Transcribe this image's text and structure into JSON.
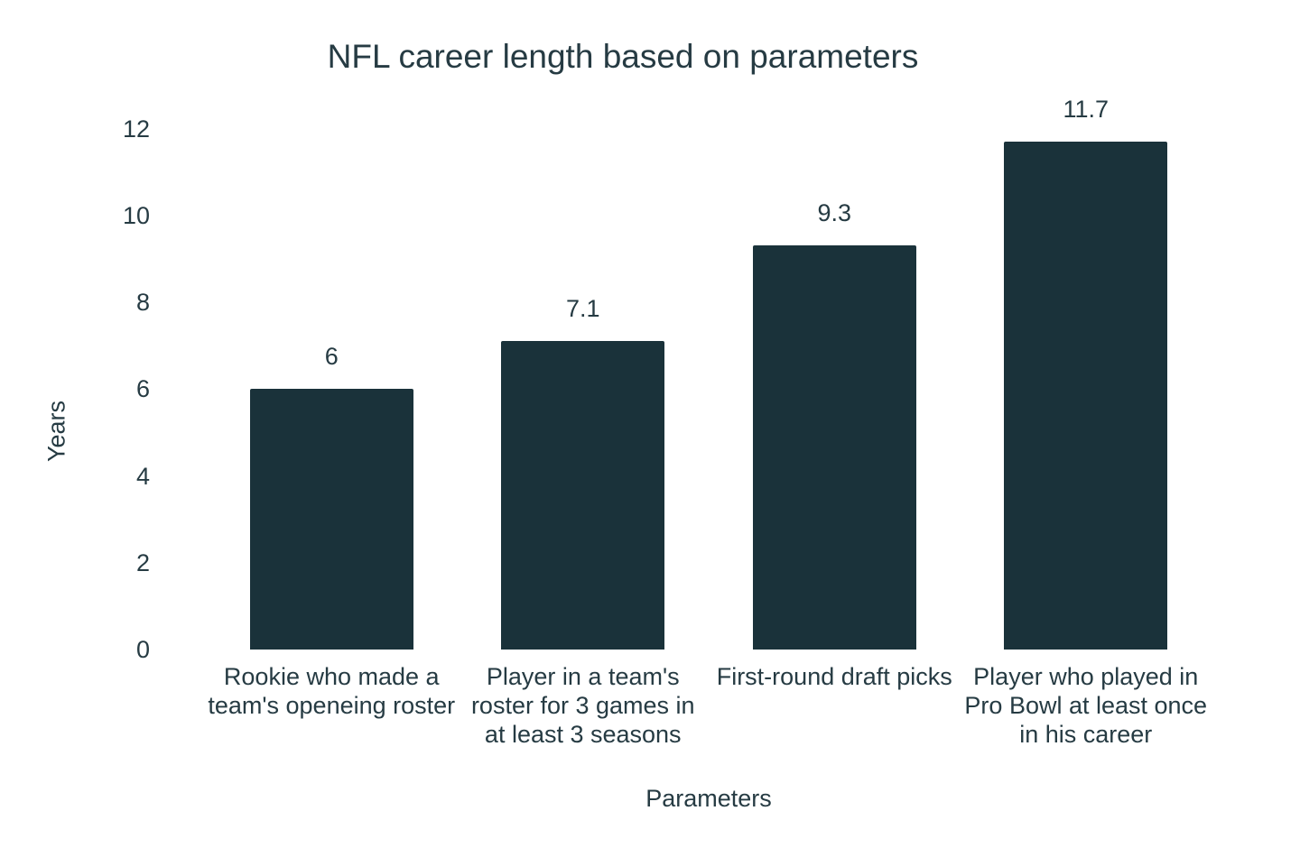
{
  "chart_data": {
    "type": "bar",
    "title": "NFL career length based on parameters",
    "xlabel": "Parameters",
    "ylabel": "Years",
    "categories": [
      "Rookie who made a team's openeing roster",
      "Player in a team's roster for 3 games in at least 3 seasons",
      "First-round draft picks",
      "Player who played in Pro Bowl at least once in his career"
    ],
    "category_lines": [
      [
        "Rookie who made a",
        "team's openeing roster"
      ],
      [
        "Player in a team's",
        "roster for 3 games in",
        "at least 3 seasons"
      ],
      [
        "First-round draft picks"
      ],
      [
        "Player who played in",
        "Pro Bowl at least once",
        "in his career"
      ]
    ],
    "values": [
      6,
      7.1,
      9.3,
      11.7
    ],
    "value_labels": [
      "6",
      "7.1",
      "9.3",
      "11.7"
    ],
    "yticks": [
      0,
      2,
      4,
      6,
      8,
      10,
      12
    ],
    "ylim": [
      0,
      12
    ],
    "grid": false,
    "legend": "none",
    "bar_color": "#1a323a",
    "text_color": "#263b43",
    "background": "#ffffff"
  }
}
